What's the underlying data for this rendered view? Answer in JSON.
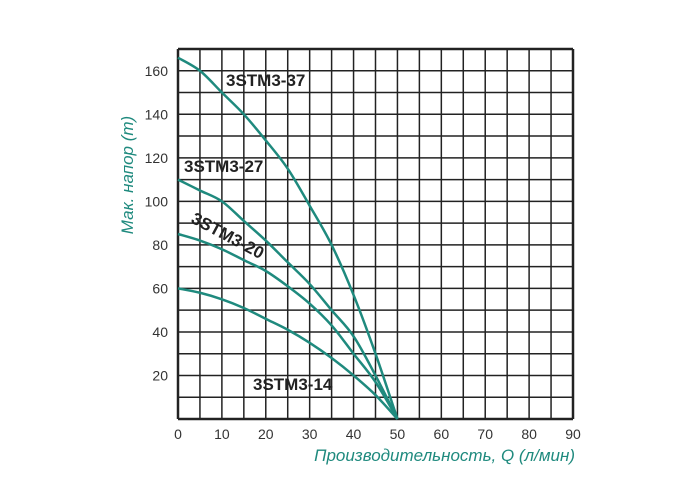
{
  "chart_data": {
    "type": "line",
    "title": "",
    "xlabel": "Производительность, Q (л/мин)",
    "ylabel": "Мак. напор (m)",
    "xlim": [
      0,
      90
    ],
    "ylim": [
      0,
      170
    ],
    "xticks": [
      "0",
      "10",
      "20",
      "30",
      "40",
      "50",
      "60",
      "70",
      "80",
      "90"
    ],
    "yticks": [
      "20",
      "40",
      "60",
      "80",
      "100",
      "120",
      "140",
      "160"
    ],
    "grid": true,
    "line_color": "#1f8a7e",
    "series": [
      {
        "name": "3STM3-37",
        "x": [
          0,
          5,
          10,
          15,
          20,
          25,
          30,
          35,
          40,
          45,
          50
        ],
        "y": [
          166,
          160,
          150,
          140,
          128,
          115,
          98,
          80,
          57,
          30,
          0
        ]
      },
      {
        "name": "3STM3-27",
        "x": [
          0,
          5,
          10,
          15,
          20,
          25,
          30,
          35,
          40,
          45,
          50
        ],
        "y": [
          110,
          105,
          100,
          91,
          82,
          72,
          62,
          50,
          38,
          20,
          0
        ]
      },
      {
        "name": "3STM3-20",
        "x": [
          0,
          5,
          10,
          15,
          20,
          25,
          30,
          35,
          40,
          45,
          50
        ],
        "y": [
          85,
          82,
          78,
          73,
          68,
          61,
          53,
          43,
          30,
          17,
          0
        ]
      },
      {
        "name": "3STM3-14",
        "x": [
          0,
          5,
          10,
          15,
          20,
          25,
          30,
          35,
          40,
          45,
          50
        ],
        "y": [
          60,
          58,
          55,
          51,
          46,
          41,
          35,
          28,
          20,
          11,
          0
        ]
      }
    ]
  }
}
